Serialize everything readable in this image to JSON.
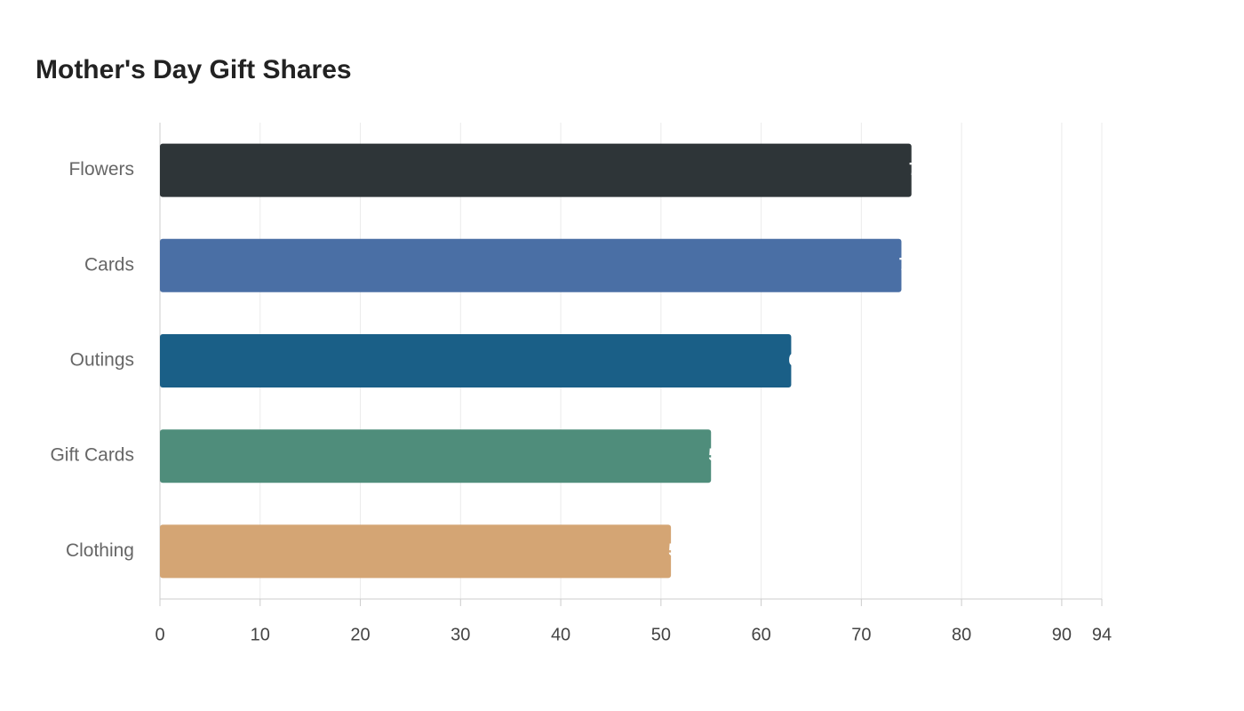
{
  "chart_data": {
    "type": "hbar",
    "title": "Mother's Day Gift Shares",
    "categories": [
      "Flowers",
      "Cards",
      "Outings",
      "Gift Cards",
      "Clothing"
    ],
    "values": [
      75,
      74,
      63,
      55,
      51
    ],
    "colors": [
      "#2e3538",
      "#4a6fa5",
      "#1a5f87",
      "#4f8d7b",
      "#d4a574"
    ],
    "xlim": [
      0,
      94
    ],
    "xticks": [
      0,
      10,
      20,
      30,
      40,
      50,
      60,
      70,
      80,
      90,
      94
    ],
    "grid": true
  }
}
